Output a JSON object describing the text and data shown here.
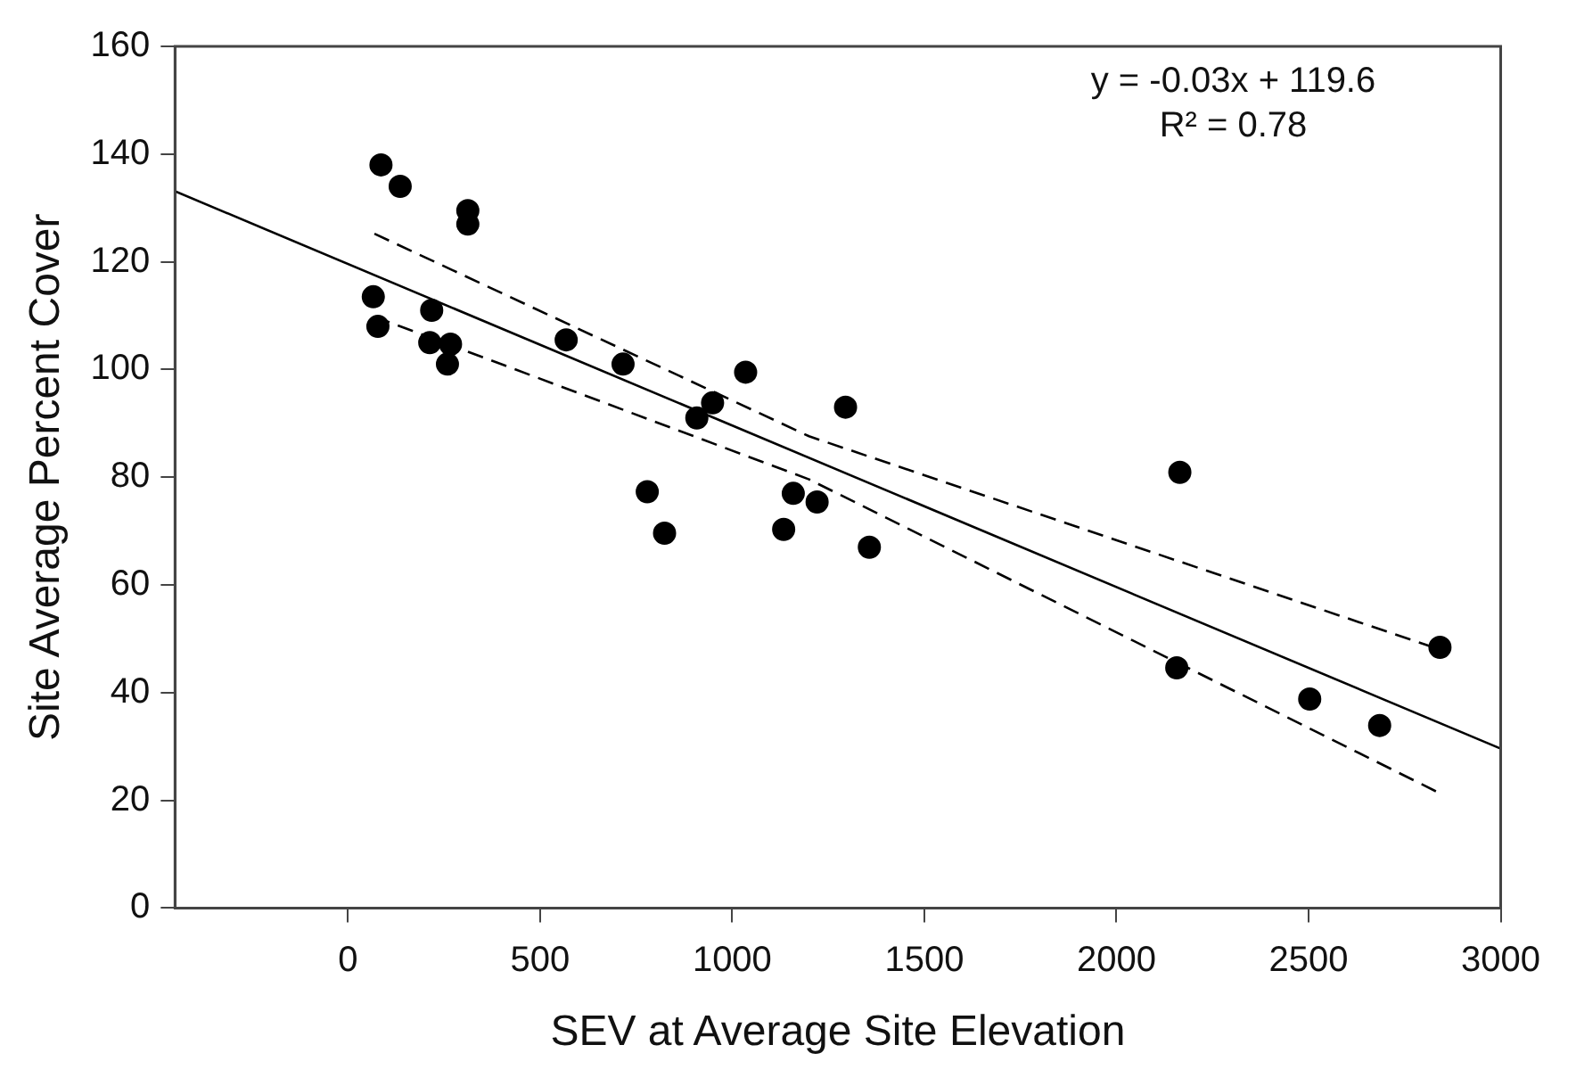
{
  "chart_data": {
    "type": "scatter",
    "xlabel": "SEV at Average Site Elevation",
    "ylabel": "Site Average Percent Cover",
    "xlim": [
      -450,
      3000
    ],
    "xticks": [
      0,
      500,
      1000,
      1500,
      2000,
      2500,
      3000
    ],
    "ylim": [
      0,
      160
    ],
    "yticks": [
      0,
      20,
      40,
      60,
      80,
      100,
      120,
      140,
      160
    ],
    "grid": false,
    "legend": false,
    "marker": "circle",
    "annotations": [
      "y = -0.03x + 119.6",
      "R² = 0.78"
    ],
    "series": [
      {
        "type": "scatter",
        "color": "#000000",
        "x": [
          86,
          136,
          312,
          312,
          66,
          78,
          218,
          213,
          267,
          259,
          568,
          716,
          1035,
          949,
          908,
          1295,
          779,
          824,
          1159,
          1221,
          1134,
          1357,
          2165,
          2157,
          2503,
          2685,
          2842
        ],
        "values": [
          138,
          134,
          129.5,
          127,
          113.5,
          108,
          111,
          105,
          104.7,
          101,
          105.5,
          101,
          99.5,
          93.8,
          91,
          93,
          77.3,
          69.6,
          77,
          75.4,
          70.3,
          67,
          80.9,
          44.6,
          38.8,
          33.9,
          48.4
        ]
      },
      {
        "type": "line",
        "color": "#000000",
        "line_style": "solid",
        "marker": "none",
        "x": [
          -450,
          3000
        ],
        "values": [
          133.1,
          29.6
        ]
      },
      {
        "type": "line",
        "color": "#000000",
        "line_style": "dashed",
        "marker": "none",
        "x": [
          69,
          1200,
          2842
        ],
        "values": [
          125.2,
          87.6,
          48
        ]
      },
      {
        "type": "line",
        "color": "#000000",
        "line_style": "dashed",
        "marker": "none",
        "x": [
          69,
          1200,
          2842
        ],
        "values": [
          109.8,
          79.6,
          21.3
        ]
      }
    ]
  }
}
